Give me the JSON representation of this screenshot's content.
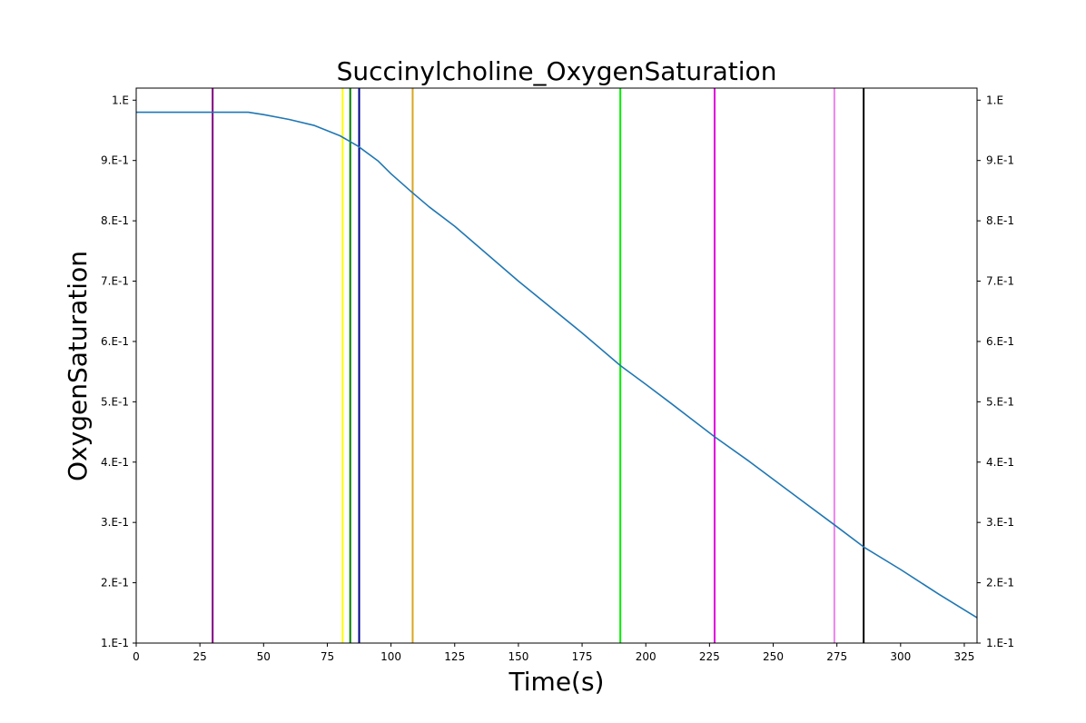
{
  "chart_data": {
    "type": "line",
    "title": "Succinylcholine_OxygenSaturation",
    "xlabel": "Time(s)",
    "ylabel": "OxygenSaturation",
    "xlim": [
      0,
      330
    ],
    "ylim": [
      0.1,
      1.02
    ],
    "grid": false,
    "legend": "none",
    "x_ticks": [
      0,
      25,
      50,
      75,
      100,
      125,
      150,
      175,
      200,
      225,
      250,
      275,
      300,
      325
    ],
    "x_tick_labels": [
      "0",
      "25",
      "50",
      "75",
      "100",
      "125",
      "150",
      "175",
      "200",
      "225",
      "250",
      "275",
      "300",
      "325"
    ],
    "y_ticks": [
      0.1,
      0.2,
      0.3,
      0.4,
      0.5,
      0.6,
      0.7,
      0.8,
      0.9,
      1.0
    ],
    "y_tick_labels": [
      "1.E-1",
      "2.E-1",
      "3.E-1",
      "4.E-1",
      "5.E-1",
      "6.E-1",
      "7.E-1",
      "8.E-1",
      "9.E-1",
      "1.E"
    ],
    "series": [
      {
        "color": "#1f77b4",
        "x": [
          0,
          20,
          44,
          50,
          60,
          70,
          80,
          87,
          95,
          100,
          108,
          115,
          125,
          150,
          175,
          190,
          200,
          210,
          227,
          240,
          260,
          274,
          286,
          300,
          315,
          330
        ],
        "y": [
          0.98,
          0.98,
          0.98,
          0.976,
          0.968,
          0.958,
          0.941,
          0.924,
          0.899,
          0.878,
          0.848,
          0.823,
          0.791,
          0.7,
          0.614,
          0.56,
          0.529,
          0.497,
          0.442,
          0.403,
          0.34,
          0.296,
          0.258,
          0.222,
          0.181,
          0.142
        ]
      }
    ],
    "event_lines": [
      {
        "x": 30,
        "color": "#800080"
      },
      {
        "x": 81,
        "color": "#ffff00"
      },
      {
        "x": 84,
        "color": "#008000"
      },
      {
        "x": 87.5,
        "color": "#00008b"
      },
      {
        "x": 108.5,
        "color": "#daa520"
      },
      {
        "x": 190,
        "color": "#00ee00"
      },
      {
        "x": 227,
        "color": "#dd00dd"
      },
      {
        "x": 274,
        "color": "#ee82ee"
      },
      {
        "x": 285.5,
        "color": "#000000"
      }
    ]
  }
}
